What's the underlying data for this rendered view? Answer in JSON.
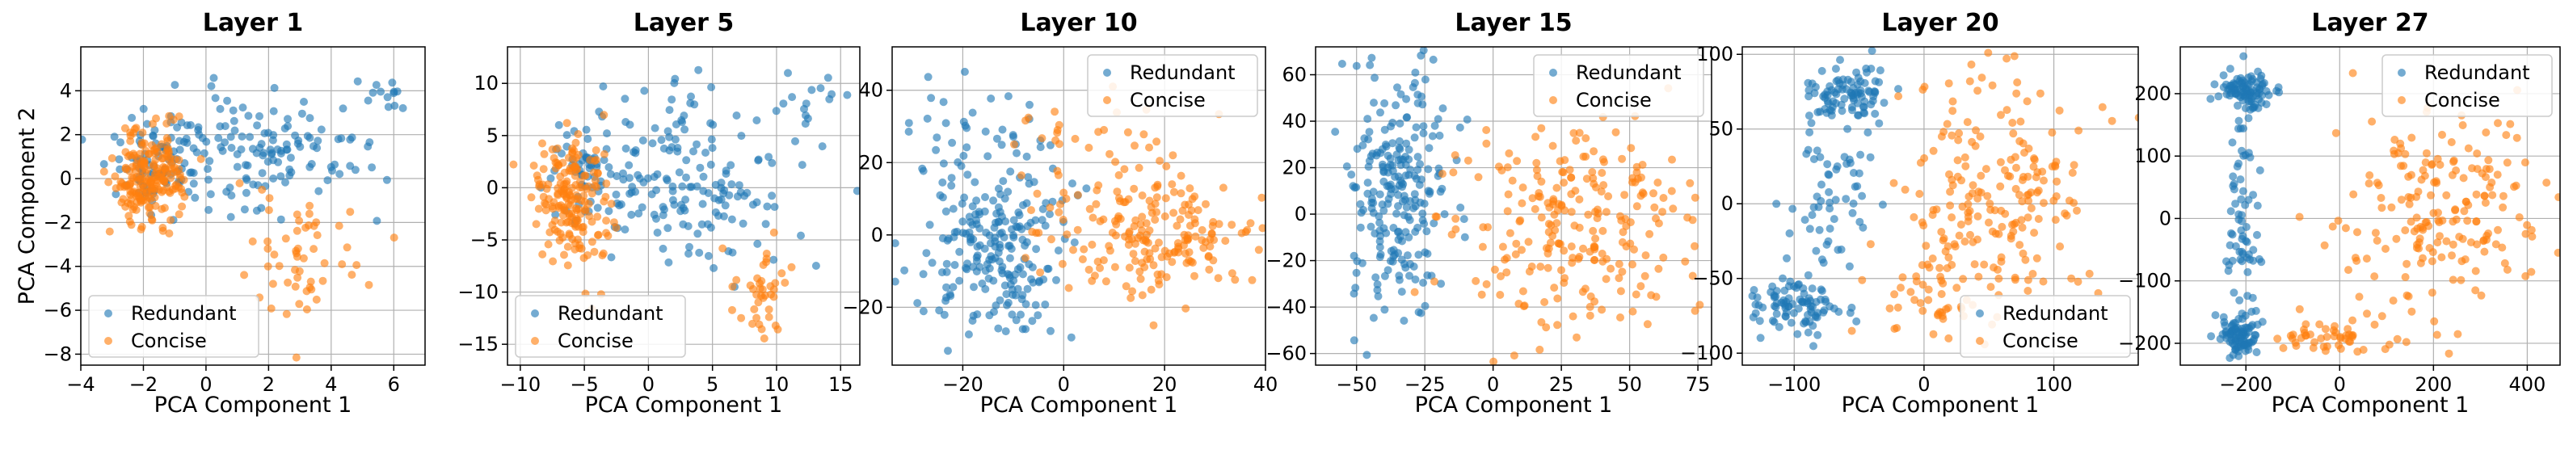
{
  "chart_data": [
    {
      "type": "scatter",
      "title": "Layer 1",
      "xlabel": "PCA Component 1",
      "ylabel": "PCA Component 2",
      "xlim": [
        -4,
        7
      ],
      "ylim": [
        -8.5,
        6
      ],
      "xticks": [
        -4,
        -2,
        0,
        2,
        4,
        6
      ],
      "yticks": [
        -8,
        -6,
        -4,
        -2,
        0,
        2,
        4
      ],
      "legend": "lower-left",
      "clusters": {
        "Redundant": [
          [
            1.5,
            1.2,
            2.2,
            1.4,
            160
          ],
          [
            -1.8,
            0.5,
            0.6,
            1.0,
            60
          ],
          [
            5.8,
            4.0,
            0.4,
            0.4,
            12
          ]
        ],
        "Concise": [
          [
            -1.8,
            0.0,
            0.6,
            1.1,
            200
          ],
          [
            3.2,
            -3.5,
            1.1,
            2.0,
            55
          ]
        ]
      },
      "series": [
        {
          "name": "Redundant",
          "color": "#1f77b4"
        },
        {
          "name": "Concise",
          "color": "#ff7f0e"
        }
      ]
    },
    {
      "type": "scatter",
      "title": "Layer 5",
      "xlabel": "PCA Component 1",
      "ylabel": "",
      "xlim": [
        -11,
        16.5
      ],
      "ylim": [
        -17,
        13.5
      ],
      "xticks": [
        -10,
        -5,
        0,
        5,
        10,
        15
      ],
      "yticks": [
        -15,
        -10,
        -5,
        0,
        5,
        10
      ],
      "legend": "lower-left",
      "clusters": {
        "Redundant": [
          [
            3.0,
            1.0,
            4.5,
            4.0,
            170
          ],
          [
            -5.0,
            2.0,
            1.5,
            3.0,
            50
          ],
          [
            13.0,
            8.5,
            1.2,
            1.5,
            14
          ]
        ],
        "Concise": [
          [
            -6.0,
            -1.0,
            1.4,
            3.5,
            180
          ],
          [
            9.0,
            -10.0,
            1.5,
            2.5,
            40
          ]
        ]
      },
      "series": [
        {
          "name": "Redundant",
          "color": "#1f77b4"
        },
        {
          "name": "Concise",
          "color": "#ff7f0e"
        }
      ]
    },
    {
      "type": "scatter",
      "title": "Layer 10",
      "xlabel": "PCA Component 1",
      "ylabel": "",
      "xlim": [
        -34,
        40
      ],
      "ylim": [
        -36,
        52
      ],
      "xticks": [
        -20,
        0,
        20,
        40
      ],
      "yticks": [
        -20,
        0,
        20,
        40
      ],
      "legend": "upper-right",
      "clusters": {
        "Redundant": [
          [
            -14.0,
            -4.0,
            8.0,
            14.0,
            230
          ],
          [
            -20.0,
            28.0,
            5.0,
            8.0,
            25
          ]
        ],
        "Concise": [
          [
            18.0,
            -1.0,
            10.0,
            9.0,
            190
          ],
          [
            6.0,
            25.0,
            10.0,
            10.0,
            35
          ]
        ]
      },
      "series": [
        {
          "name": "Redundant",
          "color": "#1f77b4"
        },
        {
          "name": "Concise",
          "color": "#ff7f0e"
        }
      ]
    },
    {
      "type": "scatter",
      "title": "Layer 15",
      "xlabel": "PCA Component 1",
      "ylabel": "",
      "xlim": [
        -65,
        80
      ],
      "ylim": [
        -65,
        72
      ],
      "xticks": [
        -50,
        -25,
        0,
        25,
        50,
        75
      ],
      "yticks": [
        -60,
        -40,
        -20,
        0,
        20,
        40,
        60
      ],
      "legend": "upper-right",
      "clusters": {
        "Redundant": [
          [
            -35.0,
            10.0,
            10.0,
            30.0,
            240
          ]
        ],
        "Concise": [
          [
            32.0,
            -5.0,
            22.0,
            23.0,
            240
          ]
        ]
      },
      "series": [
        {
          "name": "Redundant",
          "color": "#1f77b4"
        },
        {
          "name": "Concise",
          "color": "#ff7f0e"
        }
      ]
    },
    {
      "type": "scatter",
      "title": "Layer 20",
      "xlabel": "PCA Component 1",
      "ylabel": "",
      "xlim": [
        -140,
        165
      ],
      "ylim": [
        -108,
        105
      ],
      "xticks": [
        -100,
        0,
        100
      ],
      "yticks": [
        -100,
        -50,
        0,
        50,
        100
      ],
      "legend": "lower-right",
      "clusters": {
        "Redundant": [
          [
            -60.0,
            72.0,
            15.0,
            9.0,
            90
          ],
          [
            -100.0,
            -68.0,
            16.0,
            11.0,
            90
          ],
          [
            -70.0,
            5.0,
            15.0,
            35.0,
            60
          ]
        ],
        "Concise": [
          [
            55.0,
            10.0,
            40.0,
            40.0,
            200
          ],
          [
            0.0,
            -60.0,
            25.0,
            15.0,
            40
          ]
        ]
      },
      "series": [
        {
          "name": "Redundant",
          "color": "#1f77b4"
        },
        {
          "name": "Concise",
          "color": "#ff7f0e"
        }
      ]
    },
    {
      "type": "scatter",
      "title": "Layer 27",
      "xlabel": "PCA Component 1",
      "ylabel": "",
      "xlim": [
        -340,
        470
      ],
      "ylim": [
        -235,
        275
      ],
      "xticks": [
        -200,
        0,
        200,
        400
      ],
      "yticks": [
        -200,
        -100,
        0,
        100,
        200
      ],
      "legend": "upper-right",
      "clusters": {
        "Redundant": [
          [
            -200.0,
            205.0,
            30.0,
            15.0,
            90
          ],
          [
            -215.0,
            -185.0,
            25.0,
            15.0,
            90
          ],
          [
            -205.0,
            0.0,
            18.0,
            90.0,
            70
          ]
        ],
        "Concise": [
          [
            220.0,
            20.0,
            110.0,
            95.0,
            190
          ],
          [
            0.0,
            -190.0,
            70.0,
            15.0,
            50
          ]
        ]
      },
      "series": [
        {
          "name": "Redundant",
          "color": "#1f77b4"
        },
        {
          "name": "Concise",
          "color": "#ff7f0e"
        }
      ]
    }
  ]
}
